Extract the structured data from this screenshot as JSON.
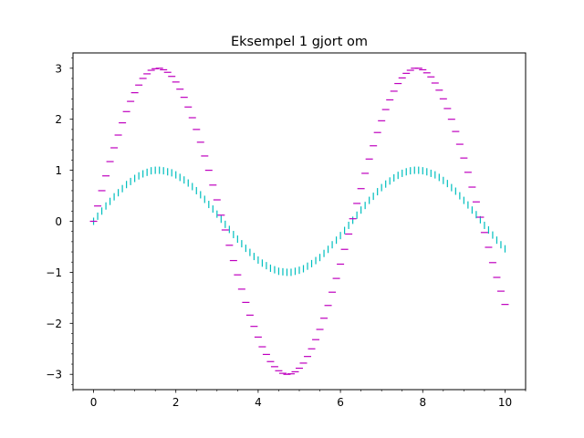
{
  "chart_data": {
    "type": "scatter",
    "title": "Eksempel 1 gjort om",
    "xlabel": "",
    "ylabel": "",
    "xlim": [
      -0.5,
      10.5
    ],
    "ylim": [
      -3.3,
      3.3
    ],
    "x_ticks": [
      0,
      2,
      4,
      6,
      8,
      10
    ],
    "x_tick_labels": [
      "0",
      "2",
      "4",
      "6",
      "8",
      "10"
    ],
    "y_ticks": [
      -3,
      -2,
      -1,
      0,
      1,
      2,
      3
    ],
    "y_tick_labels": [
      "−3",
      "−2",
      "−1",
      "0",
      "1",
      "2",
      "3"
    ],
    "grid": false,
    "legend": "none",
    "x": [
      0.0,
      0.1,
      0.2,
      0.3,
      0.4,
      0.5,
      0.6,
      0.7,
      0.8,
      0.9,
      1.0,
      1.1,
      1.2,
      1.3,
      1.4,
      1.5,
      1.6,
      1.7,
      1.8,
      1.9,
      2.0,
      2.1,
      2.2,
      2.3,
      2.4,
      2.5,
      2.6,
      2.7,
      2.8,
      2.9,
      3.0,
      3.1,
      3.2,
      3.3,
      3.4,
      3.5,
      3.6,
      3.7,
      3.8,
      3.9,
      4.0,
      4.1,
      4.2,
      4.3,
      4.4,
      4.5,
      4.6,
      4.7,
      4.8,
      4.9,
      5.0,
      5.1,
      5.2,
      5.3,
      5.4,
      5.5,
      5.6,
      5.7,
      5.8,
      5.9,
      6.0,
      6.1,
      6.2,
      6.3,
      6.4,
      6.5,
      6.6,
      6.7,
      6.8,
      6.9,
      7.0,
      7.1,
      7.2,
      7.3,
      7.4,
      7.5,
      7.6,
      7.7,
      7.8,
      7.9,
      8.0,
      8.1,
      8.2,
      8.3,
      8.4,
      8.5,
      8.6,
      8.7,
      8.8,
      8.9,
      9.0,
      9.1,
      9.2,
      9.3,
      9.4,
      9.5,
      9.6,
      9.7,
      9.8,
      9.9,
      10.0
    ],
    "series": [
      {
        "marker": "vertical-line",
        "color": "#00bfbf",
        "values": [
          0.0,
          0.1,
          0.2,
          0.3,
          0.39,
          0.48,
          0.56,
          0.64,
          0.72,
          0.78,
          0.84,
          0.89,
          0.93,
          0.96,
          0.99,
          1.0,
          1.0,
          0.99,
          0.97,
          0.95,
          0.91,
          0.86,
          0.81,
          0.75,
          0.68,
          0.6,
          0.52,
          0.43,
          0.33,
          0.24,
          0.14,
          0.04,
          -0.06,
          -0.16,
          -0.26,
          -0.35,
          -0.44,
          -0.53,
          -0.61,
          -0.69,
          -0.76,
          -0.82,
          -0.87,
          -0.92,
          -0.95,
          -0.98,
          -0.99,
          -1.0,
          -1.0,
          -0.98,
          -0.96,
          -0.93,
          -0.88,
          -0.83,
          -0.77,
          -0.71,
          -0.63,
          -0.55,
          -0.46,
          -0.37,
          -0.28,
          -0.18,
          -0.08,
          0.02,
          0.12,
          0.22,
          0.31,
          0.41,
          0.49,
          0.58,
          0.66,
          0.73,
          0.79,
          0.85,
          0.9,
          0.94,
          0.97,
          0.99,
          1.0,
          1.0,
          0.99,
          0.97,
          0.94,
          0.91,
          0.86,
          0.8,
          0.74,
          0.66,
          0.59,
          0.5,
          0.41,
          0.32,
          0.22,
          0.13,
          0.03,
          -0.08,
          -0.17,
          -0.27,
          -0.37,
          -0.46,
          -0.54
        ]
      },
      {
        "marker": "horizontal-line",
        "color": "#bf00bf",
        "values": [
          0.0,
          0.3,
          0.6,
          0.89,
          1.17,
          1.44,
          1.69,
          1.93,
          2.15,
          2.35,
          2.52,
          2.67,
          2.8,
          2.89,
          2.96,
          2.99,
          3.0,
          2.97,
          2.92,
          2.84,
          2.73,
          2.59,
          2.43,
          2.24,
          2.03,
          1.8,
          1.55,
          1.28,
          1.0,
          0.71,
          0.42,
          0.12,
          -0.17,
          -0.47,
          -0.77,
          -1.05,
          -1.33,
          -1.59,
          -1.84,
          -2.06,
          -2.27,
          -2.46,
          -2.61,
          -2.75,
          -2.85,
          -2.93,
          -2.98,
          -3.0,
          -2.99,
          -2.95,
          -2.88,
          -2.78,
          -2.65,
          -2.5,
          -2.32,
          -2.12,
          -1.9,
          -1.65,
          -1.39,
          -1.12,
          -0.84,
          -0.55,
          -0.25,
          0.05,
          0.35,
          0.64,
          0.94,
          1.22,
          1.48,
          1.74,
          1.97,
          2.19,
          2.38,
          2.55,
          2.7,
          2.81,
          2.9,
          2.96,
          3.0,
          3.0,
          2.97,
          2.91,
          2.83,
          2.71,
          2.57,
          2.4,
          2.21,
          2.0,
          1.76,
          1.51,
          1.24,
          0.96,
          0.67,
          0.38,
          0.08,
          -0.22,
          -0.51,
          -0.81,
          -1.1,
          -1.37,
          -1.63
        ]
      }
    ]
  }
}
